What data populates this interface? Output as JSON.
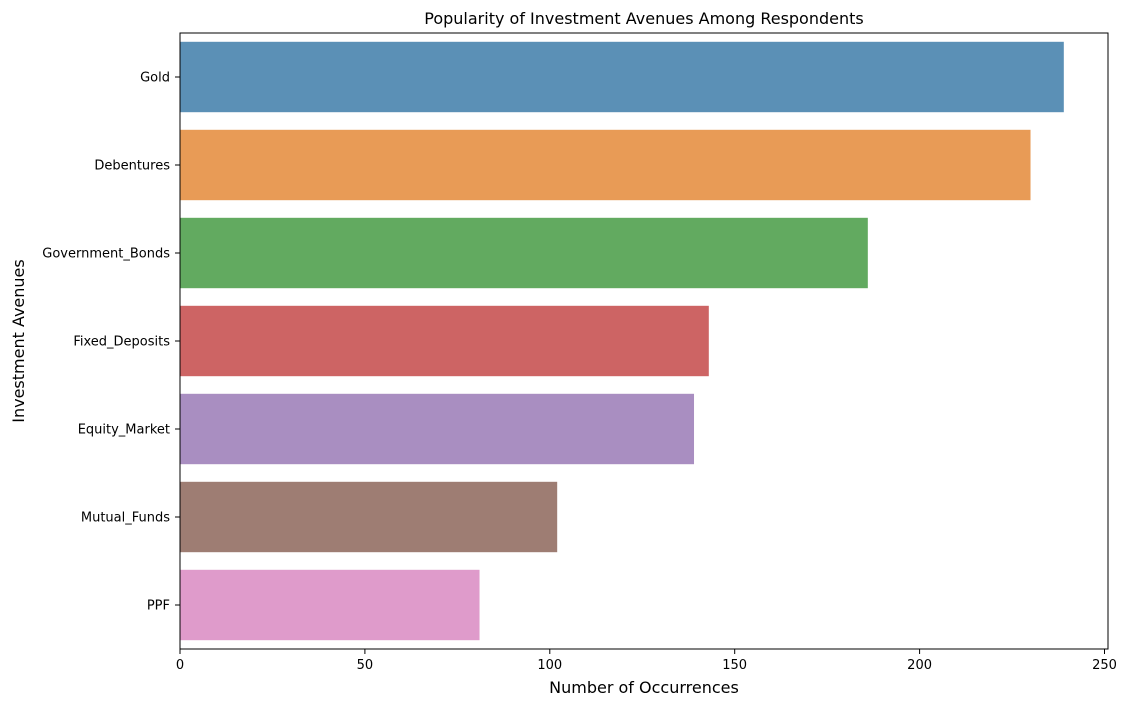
{
  "chart_data": {
    "type": "bar",
    "orientation": "horizontal",
    "title": "Popularity of Investment Avenues Among Respondents",
    "xlabel": "Number of Occurrences",
    "ylabel": "Investment Avenues",
    "categories": [
      "Gold",
      "Debentures",
      "Government_Bonds",
      "Fixed_Deposits",
      "Equity_Market",
      "Mutual_Funds",
      "PPF"
    ],
    "values": [
      239,
      230,
      186,
      143,
      139,
      102,
      81
    ],
    "colors": [
      "#5b90b6",
      "#e89b56",
      "#62aa60",
      "#cd6464",
      "#a98ec1",
      "#9e7d73",
      "#df9bcb"
    ],
    "xlim": [
      0,
      250.95
    ],
    "xticks": [
      0,
      50,
      100,
      150,
      200,
      250
    ],
    "grid": false,
    "legend": "none"
  }
}
